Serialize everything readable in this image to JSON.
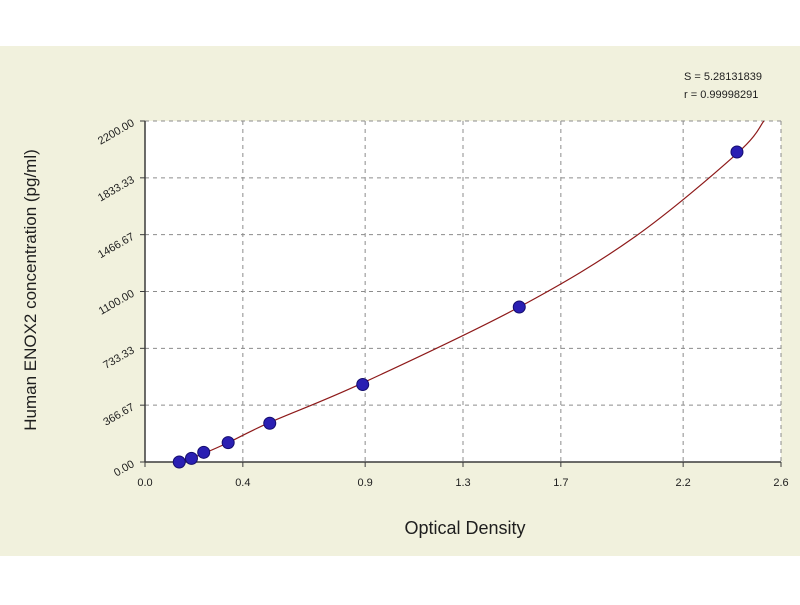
{
  "chart_data": {
    "type": "scatter",
    "title": "",
    "xlabel": "Optical Density",
    "ylabel": "Human ENOX2 concentration (pg/ml)",
    "xlim": [
      0.0,
      2.6
    ],
    "ylim": [
      0.0,
      2200.0
    ],
    "x_ticks": [
      0.0,
      0.4,
      0.9,
      1.3,
      1.7,
      2.2,
      2.6
    ],
    "x_tick_labels": [
      "0.0",
      "0.4",
      "0.9",
      "1.3",
      "1.7",
      "2.2",
      "2.6"
    ],
    "y_ticks": [
      0.0,
      366.67,
      733.33,
      1100.0,
      1466.67,
      1833.33,
      2200.0
    ],
    "y_tick_labels": [
      "0.00",
      "366.67",
      "733.33",
      "1100.00",
      "1466.67",
      "1833.33",
      "2200.00"
    ],
    "grid": true,
    "points": {
      "x": [
        0.14,
        0.19,
        0.24,
        0.34,
        0.51,
        0.89,
        1.53,
        2.42
      ],
      "y": [
        0,
        23.4,
        62.5,
        125,
        250,
        500,
        1000,
        2000
      ]
    },
    "fit_curve": {
      "x": [
        0.1,
        0.14,
        0.19,
        0.24,
        0.34,
        0.51,
        0.89,
        1.53,
        2.0,
        2.42,
        2.53
      ],
      "y": [
        -30,
        0,
        25,
        55,
        125,
        255,
        510,
        1000,
        1450,
        1990,
        2200
      ]
    },
    "annotations": {
      "line1": "S = 5.28131839",
      "line2": "r = 0.99998291"
    },
    "colors": {
      "background": "#f1f1dd",
      "plot_area": "#ffffff",
      "grid": "#8c8c8c",
      "axis": "#3c3c3c",
      "curve": "#8e1a1a",
      "point_fill": "#2a1fb3",
      "point_stroke": "#140d6e",
      "text": "#1e1e1e"
    }
  }
}
